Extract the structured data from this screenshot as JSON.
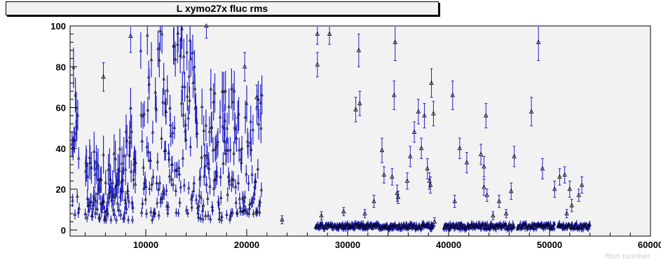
{
  "chart_data": {
    "type": "scatter",
    "title": "L xymo27x fluc rms",
    "xlabel": "Run number",
    "ylabel": "",
    "xlim": [
      2500,
      60000
    ],
    "ylim": [
      -3,
      100
    ],
    "x_ticks": [
      "10000",
      "20000",
      "30000",
      "40000",
      "50000",
      "60000"
    ],
    "y_ticks": [
      "0",
      "20",
      "40",
      "60",
      "80",
      "100"
    ],
    "grid": false,
    "marker": "open-triangle",
    "colors": {
      "frame_fill": "#f2f2f2",
      "error_bar": "#2222cc",
      "marker": "#000000"
    },
    "dense_segments": [
      {
        "x_start": 2700,
        "x_end": 3400,
        "y_min": 3,
        "y_max": 80
      },
      {
        "x_start": 4000,
        "x_end": 8000,
        "y_min": 5,
        "y_max": 40
      },
      {
        "x_start": 8000,
        "x_end": 9000,
        "y_min": 5,
        "y_max": 60
      },
      {
        "x_start": 9500,
        "x_end": 12000,
        "y_min": 5,
        "y_max": 100
      },
      {
        "x_start": 12000,
        "x_end": 15000,
        "y_min": 8,
        "y_max": 100
      },
      {
        "x_start": 15000,
        "x_end": 18500,
        "y_min": 5,
        "y_max": 70
      },
      {
        "x_start": 18500,
        "x_end": 21500,
        "y_min": 8,
        "y_max": 70
      },
      {
        "x_start": 26800,
        "x_end": 38500,
        "y_min": 0.5,
        "y_max": 3
      },
      {
        "x_start": 39500,
        "x_end": 46500,
        "y_min": 0.5,
        "y_max": 3
      },
      {
        "x_start": 46800,
        "x_end": 50500,
        "y_min": 0.5,
        "y_max": 3
      },
      {
        "x_start": 50800,
        "x_end": 54000,
        "y_min": 0.5,
        "y_max": 3
      }
    ],
    "points": [
      {
        "x": 5800,
        "y": 75,
        "err": 7
      },
      {
        "x": 8500,
        "y": 95,
        "err": 8
      },
      {
        "x": 16000,
        "y": 100,
        "err": 6
      },
      {
        "x": 19800,
        "y": 80,
        "err": 7
      },
      {
        "x": 21000,
        "y": 65,
        "err": 6
      },
      {
        "x": 23500,
        "y": 5,
        "err": 2
      },
      {
        "x": 27000,
        "y": 96,
        "err": 5
      },
      {
        "x": 27000,
        "y": 81,
        "err": 6
      },
      {
        "x": 27400,
        "y": 7,
        "err": 2
      },
      {
        "x": 28200,
        "y": 96,
        "err": 5
      },
      {
        "x": 29600,
        "y": 9,
        "err": 2
      },
      {
        "x": 30800,
        "y": 59,
        "err": 6
      },
      {
        "x": 31100,
        "y": 88,
        "err": 8
      },
      {
        "x": 31200,
        "y": 62,
        "err": 6
      },
      {
        "x": 31700,
        "y": 8,
        "err": 2
      },
      {
        "x": 32600,
        "y": 14,
        "err": 3
      },
      {
        "x": 33400,
        "y": 39,
        "err": 6
      },
      {
        "x": 33600,
        "y": 27,
        "err": 4
      },
      {
        "x": 34400,
        "y": 26,
        "err": 4
      },
      {
        "x": 34700,
        "y": 92,
        "err": 9
      },
      {
        "x": 34600,
        "y": 66,
        "err": 7
      },
      {
        "x": 34900,
        "y": 18,
        "err": 4
      },
      {
        "x": 35000,
        "y": 16,
        "err": 3
      },
      {
        "x": 35900,
        "y": 24,
        "err": 4
      },
      {
        "x": 36200,
        "y": 36,
        "err": 5
      },
      {
        "x": 36600,
        "y": 48,
        "err": 5
      },
      {
        "x": 37000,
        "y": 58,
        "err": 6
      },
      {
        "x": 37300,
        "y": 40,
        "err": 5
      },
      {
        "x": 37600,
        "y": 56,
        "err": 6
      },
      {
        "x": 37900,
        "y": 30,
        "err": 5
      },
      {
        "x": 38100,
        "y": 24,
        "err": 4
      },
      {
        "x": 38200,
        "y": 22,
        "err": 4
      },
      {
        "x": 38300,
        "y": 72,
        "err": 7
      },
      {
        "x": 38500,
        "y": 57,
        "err": 6
      },
      {
        "x": 38600,
        "y": 4,
        "err": 2
      },
      {
        "x": 40400,
        "y": 66,
        "err": 7
      },
      {
        "x": 40600,
        "y": 14,
        "err": 3
      },
      {
        "x": 41100,
        "y": 40,
        "err": 5
      },
      {
        "x": 41800,
        "y": 33,
        "err": 5
      },
      {
        "x": 43200,
        "y": 37,
        "err": 5
      },
      {
        "x": 43500,
        "y": 31,
        "err": 5
      },
      {
        "x": 43500,
        "y": 21,
        "err": 4
      },
      {
        "x": 43700,
        "y": 56,
        "err": 6
      },
      {
        "x": 43800,
        "y": 17,
        "err": 3
      },
      {
        "x": 44400,
        "y": 7,
        "err": 2
      },
      {
        "x": 45000,
        "y": 14,
        "err": 3
      },
      {
        "x": 45700,
        "y": 8,
        "err": 2
      },
      {
        "x": 46200,
        "y": 19,
        "err": 4
      },
      {
        "x": 46500,
        "y": 36,
        "err": 5
      },
      {
        "x": 48200,
        "y": 58,
        "err": 7
      },
      {
        "x": 48900,
        "y": 92,
        "err": 9
      },
      {
        "x": 49300,
        "y": 30,
        "err": 5
      },
      {
        "x": 50500,
        "y": 20,
        "err": 4
      },
      {
        "x": 51000,
        "y": 26,
        "err": 4
      },
      {
        "x": 51500,
        "y": 27,
        "err": 4
      },
      {
        "x": 51700,
        "y": 8,
        "err": 2
      },
      {
        "x": 52000,
        "y": 20,
        "err": 4
      },
      {
        "x": 52200,
        "y": 12,
        "err": 3
      },
      {
        "x": 52900,
        "y": 17,
        "err": 3
      },
      {
        "x": 53200,
        "y": 22,
        "err": 4
      }
    ]
  }
}
